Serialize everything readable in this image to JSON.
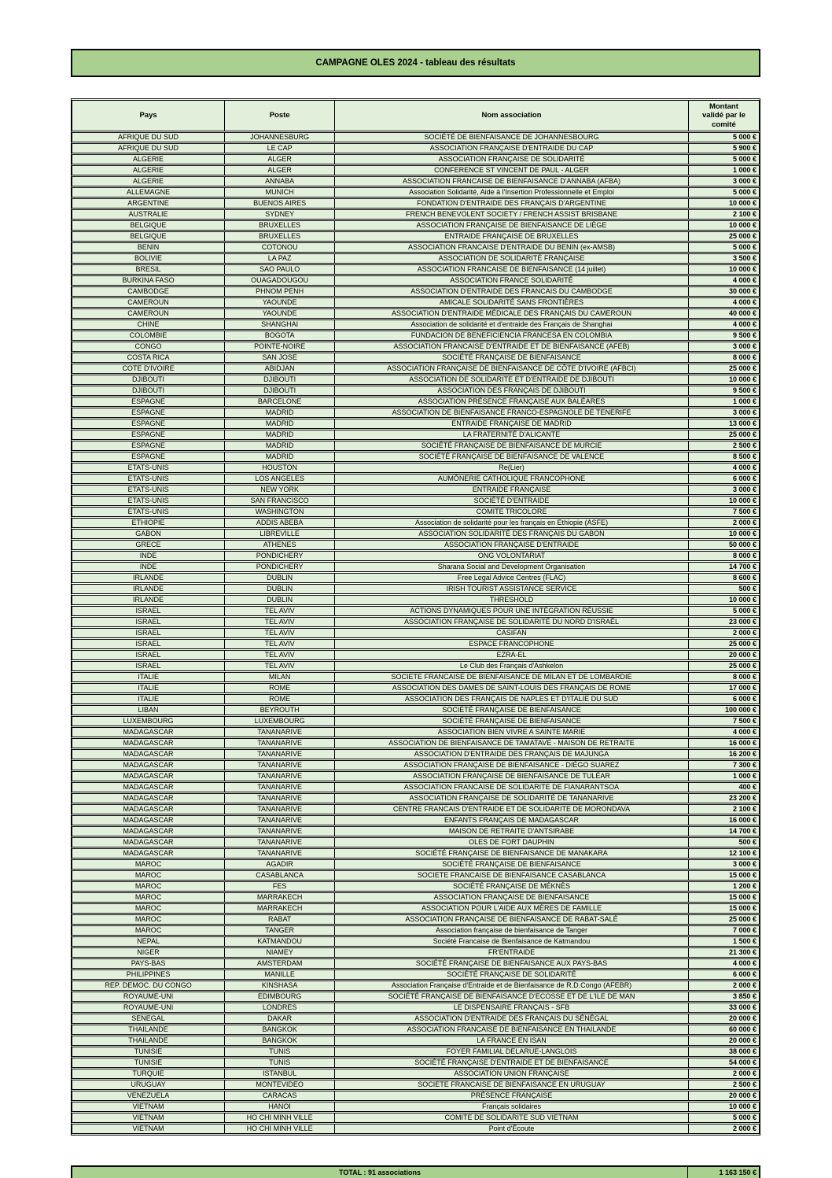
{
  "title": "CAMPAGNE OLES 2024 - tableau des résultats",
  "colors": {
    "banner_green": "#a9d08e",
    "row_light_green": "#e2efda",
    "border_black": "#000000"
  },
  "table": {
    "headers": [
      "Pays",
      "Poste",
      "Nom association",
      "Montant validé par le comité"
    ],
    "rows": [
      [
        "AFRIQUE DU SUD",
        "JOHANNESBURG",
        "SOCIÉTÉ DE BIENFAISANCE DE JOHANNESBOURG",
        "5 000 €"
      ],
      [
        "AFRIQUE DU SUD",
        "LE CAP",
        "ASSOCIATION FRANÇAISE D'ENTRAIDE DU CAP",
        "5 900 €"
      ],
      [
        "ALGERIE",
        "ALGER",
        "ASSOCIATION FRANÇAISE DE SOLIDARITÉ",
        "5 000 €"
      ],
      [
        "ALGERIE",
        "ALGER",
        "CONFERENCE ST VINCENT DE PAUL - ALGER",
        "1 000 €"
      ],
      [
        "ALGERIE",
        "ANNABA",
        "ASSOCIATION FRANCAISE DE BIENFAISANCE D'ANNABA (AFBA)",
        "3 000 €"
      ],
      [
        "ALLEMAGNE",
        "MUNICH",
        "Association Solidarité, Aide à l'Insertion Professionnelle et Emploi",
        "5 000 €"
      ],
      [
        "ARGENTINE",
        "BUENOS AIRES",
        "FONDATION D'ENTRAIDE DES FRANÇAIS D'ARGENTINE",
        "10 000 €"
      ],
      [
        "AUSTRALIE",
        "SYDNEY",
        "FRENCH BENEVOLENT SOCIETY / FRENCH ASSIST BRISBANE",
        "2 100 €"
      ],
      [
        "BELGIQUE",
        "BRUXELLES",
        "ASSOCIATION FRANÇAISE DE BIENFAISANCE DE LIÈGE",
        "10 000 €"
      ],
      [
        "BELGIQUE",
        "BRUXELLES",
        "ENTRAIDE FRANÇAISE DE BRUXELLES",
        "25 000 €"
      ],
      [
        "BENIN",
        "COTONOU",
        "ASSOCIATION FRANCAISE D'ENTRAIDE DU BENIN (ex-AMSB)",
        "5 000 €"
      ],
      [
        "BOLIVIE",
        "LA PAZ",
        "ASSOCIATION DE SOLIDARITÉ FRANÇAISE",
        "3 500 €"
      ],
      [
        "BRESIL",
        "SAO PAULO",
        "ASSOCIATION FRANCAISE DE BIENFAISANCE (14 juillet)",
        "10 000 €"
      ],
      [
        "BURKINA FASO",
        "OUAGADOUGOU",
        "ASSOCIATION FRANCE SOLIDARITÉ",
        "4 000 €"
      ],
      [
        "CAMBODGE",
        "PHNOM PENH",
        "ASSOCIATION D'ENTRAIDE DES FRANCAIS DU CAMBODGE",
        "30 000 €"
      ],
      [
        "CAMEROUN",
        "YAOUNDE",
        "AMICALE SOLIDARITÉ SANS FRONTIÈRES",
        "4 000 €"
      ],
      [
        "CAMEROUN",
        "YAOUNDE",
        "ASSOCIATION D'ENTRAIDE MÉDICALE DES FRANÇAIS DU CAMEROUN",
        "40 000 €"
      ],
      [
        "CHINE",
        "SHANGHAI",
        "Association de solidarité et d'entraide des Français de Shanghai",
        "4 000 €"
      ],
      [
        "COLOMBIE",
        "BOGOTA",
        "FUNDACION DE BENEFICIENCIA FRANCESA EN COLOMBIA",
        "9 500 €"
      ],
      [
        "CONGO",
        "POINTE-NOIRE",
        "ASSOCIATION FRANCAISE D'ENTRAIDE ET DE BIENFAISANCE (AFEB)",
        "3 000 €"
      ],
      [
        "COSTA RICA",
        "SAN JOSE",
        "SOCIÉTÉ FRANÇAISE DE BIENFAISANCE",
        "8 000 €"
      ],
      [
        "COTE D'IVOIRE",
        "ABIDJAN",
        "ASSOCIATION FRANÇAISE DE BIENFAISANCE DE CÔTE D'IVOIRE (AFBCI)",
        "25 000 €"
      ],
      [
        "DJIBOUTI",
        "DJIBOUTI",
        "ASSOCIATION DE SOLIDARITE ET D'ENTRAIDE DE DJIBOUTI",
        "10 000 €"
      ],
      [
        "DJIBOUTI",
        "DJIBOUTI",
        "ASSOCIATION DES FRANÇAIS DE DJIBOUTI",
        "9 500 €"
      ],
      [
        "ESPAGNE",
        "BARCELONE",
        "ASSOCIATION PRÉSENCE FRANÇAISE AUX BALÉARES",
        "1 000 €"
      ],
      [
        "ESPAGNE",
        "MADRID",
        "ASSOCIATION DE BIENFAISANCE FRANCO-ESPAGNOLE DE TENERIFE",
        "3 000 €"
      ],
      [
        "ESPAGNE",
        "MADRID",
        "ENTRAIDE FRANÇAISE DE MADRID",
        "13 000 €"
      ],
      [
        "ESPAGNE",
        "MADRID",
        "LA FRATERNITÉ D'ALICANTE",
        "25 000 €"
      ],
      [
        "ESPAGNE",
        "MADRID",
        "SOCIÉTÉ FRANÇAISE DE BIENFAISANCE DE MURCIE",
        "2 500 €"
      ],
      [
        "ESPAGNE",
        "MADRID",
        "SOCIÉTÉ FRANÇAISE DE BIENFAISANCE DE VALENCE",
        "8 500 €"
      ],
      [
        "ETATS-UNIS",
        "HOUSTON",
        "Re(Lier)",
        "4 000 €"
      ],
      [
        "ETATS-UNIS",
        "LOS ANGELES",
        "AUMÔNERIE CATHOLIQUE FRANCOPHONE",
        "6 000 €"
      ],
      [
        "ETATS-UNIS",
        "NEW YORK",
        "ENTRAIDE FRANÇAISE",
        "3 000 €"
      ],
      [
        "ETATS-UNIS",
        "SAN FRANCISCO",
        "SOCIÉTÉ D'ENTRAIDE",
        "10 000 €"
      ],
      [
        "ETATS-UNIS",
        "WASHINGTON",
        "COMITE TRICOLORE",
        "7 500 €"
      ],
      [
        "ETHIOPIE",
        "ADDIS ABEBA",
        "Association de solidarité pour les français en Ethiopie (ASFE)",
        "2 000 €"
      ],
      [
        "GABON",
        "LIBREVILLE",
        "ASSOCIATION SOLIDARITÉ DES FRANÇAIS DU GABON",
        "10 000 €"
      ],
      [
        "GRECE",
        "ATHENES",
        "ASSOCIATION FRANÇAISE D'ENTRAIDE",
        "50 000 €"
      ],
      [
        "INDE",
        "PONDICHERY",
        "ONG VOLONTARIAT",
        "8 000 €"
      ],
      [
        "INDE",
        "PONDICHERY",
        "Sharana Social and Development Organisation",
        "14 700 €"
      ],
      [
        "IRLANDE",
        "DUBLIN",
        "Free Legal Advice Centres (FLAC)",
        "8 600 €"
      ],
      [
        "IRLANDE",
        "DUBLIN",
        "IRISH TOURIST ASSISTANCE SERVICE",
        "500 €"
      ],
      [
        "IRLANDE",
        "DUBLIN",
        "THRESHOLD",
        "10 000 €"
      ],
      [
        "ISRAEL",
        "TEL AVIV",
        "ACTIONS DYNAMIQUES POUR UNE INTÉGRATION RÉUSSIE",
        "5 000 €"
      ],
      [
        "ISRAEL",
        "TEL AVIV",
        "ASSOCIATION FRANÇAISE DE SOLIDARITÉ DU NORD D'ISRAËL",
        "23 000 €"
      ],
      [
        "ISRAEL",
        "TEL AVIV",
        "CASIFAN",
        "2 000 €"
      ],
      [
        "ISRAEL",
        "TEL AVIV",
        "ESPACE FRANCOPHONE",
        "25 000 €"
      ],
      [
        "ISRAEL",
        "TEL AVIV",
        "EZRA-EL",
        "20 000 €"
      ],
      [
        "ISRAEL",
        "TEL AVIV",
        "Le Club des Français d'Ashkelon",
        "25 000 €"
      ],
      [
        "ITALIE",
        "MILAN",
        "SOCIETE FRANCAISE DE BIENFAISANCE DE MILAN ET DE LOMBARDIE",
        "8 000 €"
      ],
      [
        "ITALIE",
        "ROME",
        "ASSOCIATION DES DAMES DE SAINT-LOUIS DES FRANÇAIS DE ROME",
        "17 000 €"
      ],
      [
        "ITALIE",
        "ROME",
        "ASSOCIATION DES FRANÇAIS DE NAPLES ET D'ITALIE DU SUD",
        "6 000 €"
      ],
      [
        "LIBAN",
        "BEYROUTH",
        "SOCIÉTÉ FRANÇAISE DE BIENFAISANCE",
        "100 000 €"
      ],
      [
        "LUXEMBOURG",
        "LUXEMBOURG",
        "SOCIÉTÉ FRANÇAISE DE BIENFAISANCE",
        "7 500 €"
      ],
      [
        "MADAGASCAR",
        "TANANARIVE",
        "ASSOCIATION BIEN VIVRE A SAINTE MARIE",
        "4 000 €"
      ],
      [
        "MADAGASCAR",
        "TANANARIVE",
        "ASSOCIATION DE BIENFAISANCE DE TAMATAVE - MAISON DE RETRAITE",
        "16 000 €"
      ],
      [
        "MADAGASCAR",
        "TANANARIVE",
        "ASSOCIATION D'ENTRAIDE DES FRANÇAIS DE MAJUNGA",
        "16 200 €"
      ],
      [
        "MADAGASCAR",
        "TANANARIVE",
        "ASSOCIATION FRANÇAISE DE BIENFAISANCE - DIÉGO SUAREZ",
        "7 300 €"
      ],
      [
        "MADAGASCAR",
        "TANANARIVE",
        "ASSOCIATION FRANÇAISE DE BIENFAISANCE DE TULÉAR",
        "1 000 €"
      ],
      [
        "MADAGASCAR",
        "TANANARIVE",
        "ASSOCIATION FRANCAISE DE SOLIDARITE DE FIANARANTSOA",
        "400 €"
      ],
      [
        "MADAGASCAR",
        "TANANARIVE",
        "ASSOCIATION FRANÇAISE DE SOLIDARITÉ DE TANANARIVE",
        "23 200 €"
      ],
      [
        "MADAGASCAR",
        "TANANARIVE",
        "CENTRE FRANCAIS D'ENTRAIDE ET DE SOLIDARITE DE MORONDAVA",
        "2 100 €"
      ],
      [
        "MADAGASCAR",
        "TANANARIVE",
        "ENFANTS FRANÇAIS DE MADAGASCAR",
        "16 000 €"
      ],
      [
        "MADAGASCAR",
        "TANANARIVE",
        "MAISON DE RETRAITE D'ANTSIRABE",
        "14 700 €"
      ],
      [
        "MADAGASCAR",
        "TANANARIVE",
        "OLES DE FORT DAUPHIN",
        "500 €"
      ],
      [
        "MADAGASCAR",
        "TANANARIVE",
        "SOCIÉTÉ FRANÇAISE DE BIENFAISANCE DE MANAKARA",
        "12 100 €"
      ],
      [
        "MAROC",
        "AGADIR",
        "SOCIÉTÉ FRANÇAISE DE BIENFAISANCE",
        "3 000 €"
      ],
      [
        "MAROC",
        "CASABLANCA",
        "SOCIETE FRANCAISE DE BIENFAISANCE CASABLANCA",
        "15 000 €"
      ],
      [
        "MAROC",
        "FES",
        "SOCIÉTÉ FRANÇAISE DE MÉKNÈS",
        "1 200 €"
      ],
      [
        "MAROC",
        "MARRAKECH",
        "ASSOCIATION FRANÇAISE DE BIENFAISANCE",
        "15 000 €"
      ],
      [
        "MAROC",
        "MARRAKECH",
        "ASSOCIATION POUR L'AIDE AUX MÈRES DE FAMILLE",
        "15 000 €"
      ],
      [
        "MAROC",
        "RABAT",
        "ASSOCIATION FRANÇAISE DE BIENFAISANCE DE RABAT-SALÉ",
        "25 000 €"
      ],
      [
        "MAROC",
        "TANGER",
        "Association française de bienfaisance de Tanger",
        "7 000 €"
      ],
      [
        "NEPAL",
        "KATMANDOU",
        "Société Francaise de Bienfaisance de Katmandou",
        "1 500 €"
      ],
      [
        "NIGER",
        "NIAMEY",
        "FR'ENTRAIDE",
        "21 300 €"
      ],
      [
        "PAYS-BAS",
        "AMSTERDAM",
        "SOCIÉTÉ FRANÇAISE DE BIENFAISANCE AUX PAYS-BAS",
        "4 000 €"
      ],
      [
        "PHILIPPINES",
        "MANILLE",
        "SOCIÉTÉ FRANÇAISE DE SOLIDARITÉ",
        "6 000 €"
      ],
      [
        "REP. DEMOC. DU CONGO",
        "KINSHASA",
        "Association Française d'Entraide et de Bienfaisance de R.D.Congo (AFEBR)",
        "2 000 €"
      ],
      [
        "ROYAUME-UNI",
        "EDIMBOURG",
        "SOCIÉTÉ FRANÇAISE DE BIENFAISANCE D'ECOSSE ET DE L'ILE DE MAN",
        "3 850 €"
      ],
      [
        "ROYAUME-UNI",
        "LONDRES",
        "LE DISPENSAIRE FRANÇAIS - SFB",
        "33 000 €"
      ],
      [
        "SENEGAL",
        "DAKAR",
        "ASSOCIATION D'ENTRAIDE DES FRANÇAIS DU SÉNÉGAL",
        "20 000 €"
      ],
      [
        "THAILANDE",
        "BANGKOK",
        "ASSOCIATION FRANCAISE DE BIENFAISANCE EN THAILANDE",
        "60 000 €"
      ],
      [
        "THAILANDE",
        "BANGKOK",
        "LA FRANCE EN ISAN",
        "20 000 €"
      ],
      [
        "TUNISIE",
        "TUNIS",
        "FOYER FAMILIAL DELARUE-LANGLOIS",
        "38 000 €"
      ],
      [
        "TUNISIE",
        "TUNIS",
        "SOCIÉTÉ FRANÇAISE D'ENTRAIDE ET DE BIENFAISANCE",
        "54 000 €"
      ],
      [
        "TURQUIE",
        "ISTANBUL",
        "ASSOCIATION UNION FRANÇAISE",
        "2 000 €"
      ],
      [
        "URUGUAY",
        "MONTEVIDEO",
        "SOCIETE FRANCAISE DE BIENFAISANCE EN URUGUAY",
        "2 500 €"
      ],
      [
        "VENEZUELA",
        "CARACAS",
        "PRÉSENCE FRANÇAISE",
        "20 000 €"
      ],
      [
        "VIETNAM",
        "HANOI",
        "Français solidaires",
        "10 000 €"
      ],
      [
        "VIETNAM",
        "HO CHI MINH VILLE",
        "COMITE DE SOLIDARITE SUD VIETNAM",
        "5 000 €"
      ],
      [
        "VIETNAM",
        "HO CHI MINH VILLE",
        "Point d'Écoute",
        "2 000 €"
      ]
    ]
  },
  "total": {
    "label": "TOTAL : 91 associations",
    "amount": "1 163 150 €"
  }
}
